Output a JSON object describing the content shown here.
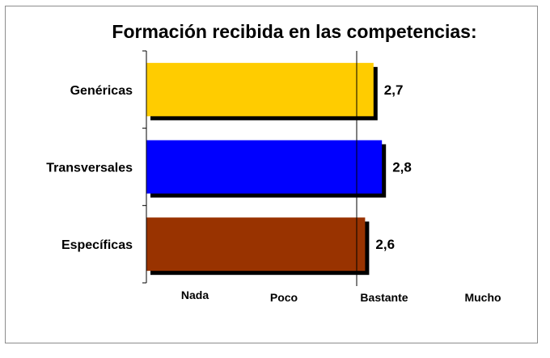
{
  "chart_data": {
    "type": "bar",
    "orientation": "horizontal",
    "title": "Formación recibida en las competencias:",
    "categories": [
      "Genéricas",
      "Transversales",
      "Específicas"
    ],
    "values": [
      2.7,
      2.8,
      2.6
    ],
    "value_labels": [
      "2,7",
      "2,8",
      "2,6"
    ],
    "colors": [
      "#FFCC00",
      "#0000FF",
      "#993300"
    ],
    "x_tick_labels": [
      "Nada",
      "Poco",
      "Bastante",
      "Mucho"
    ],
    "xlim": [
      0,
      4.5
    ],
    "reference_line": 2.5,
    "grid": false,
    "legend": "none",
    "xlabel": "",
    "ylabel": ""
  }
}
